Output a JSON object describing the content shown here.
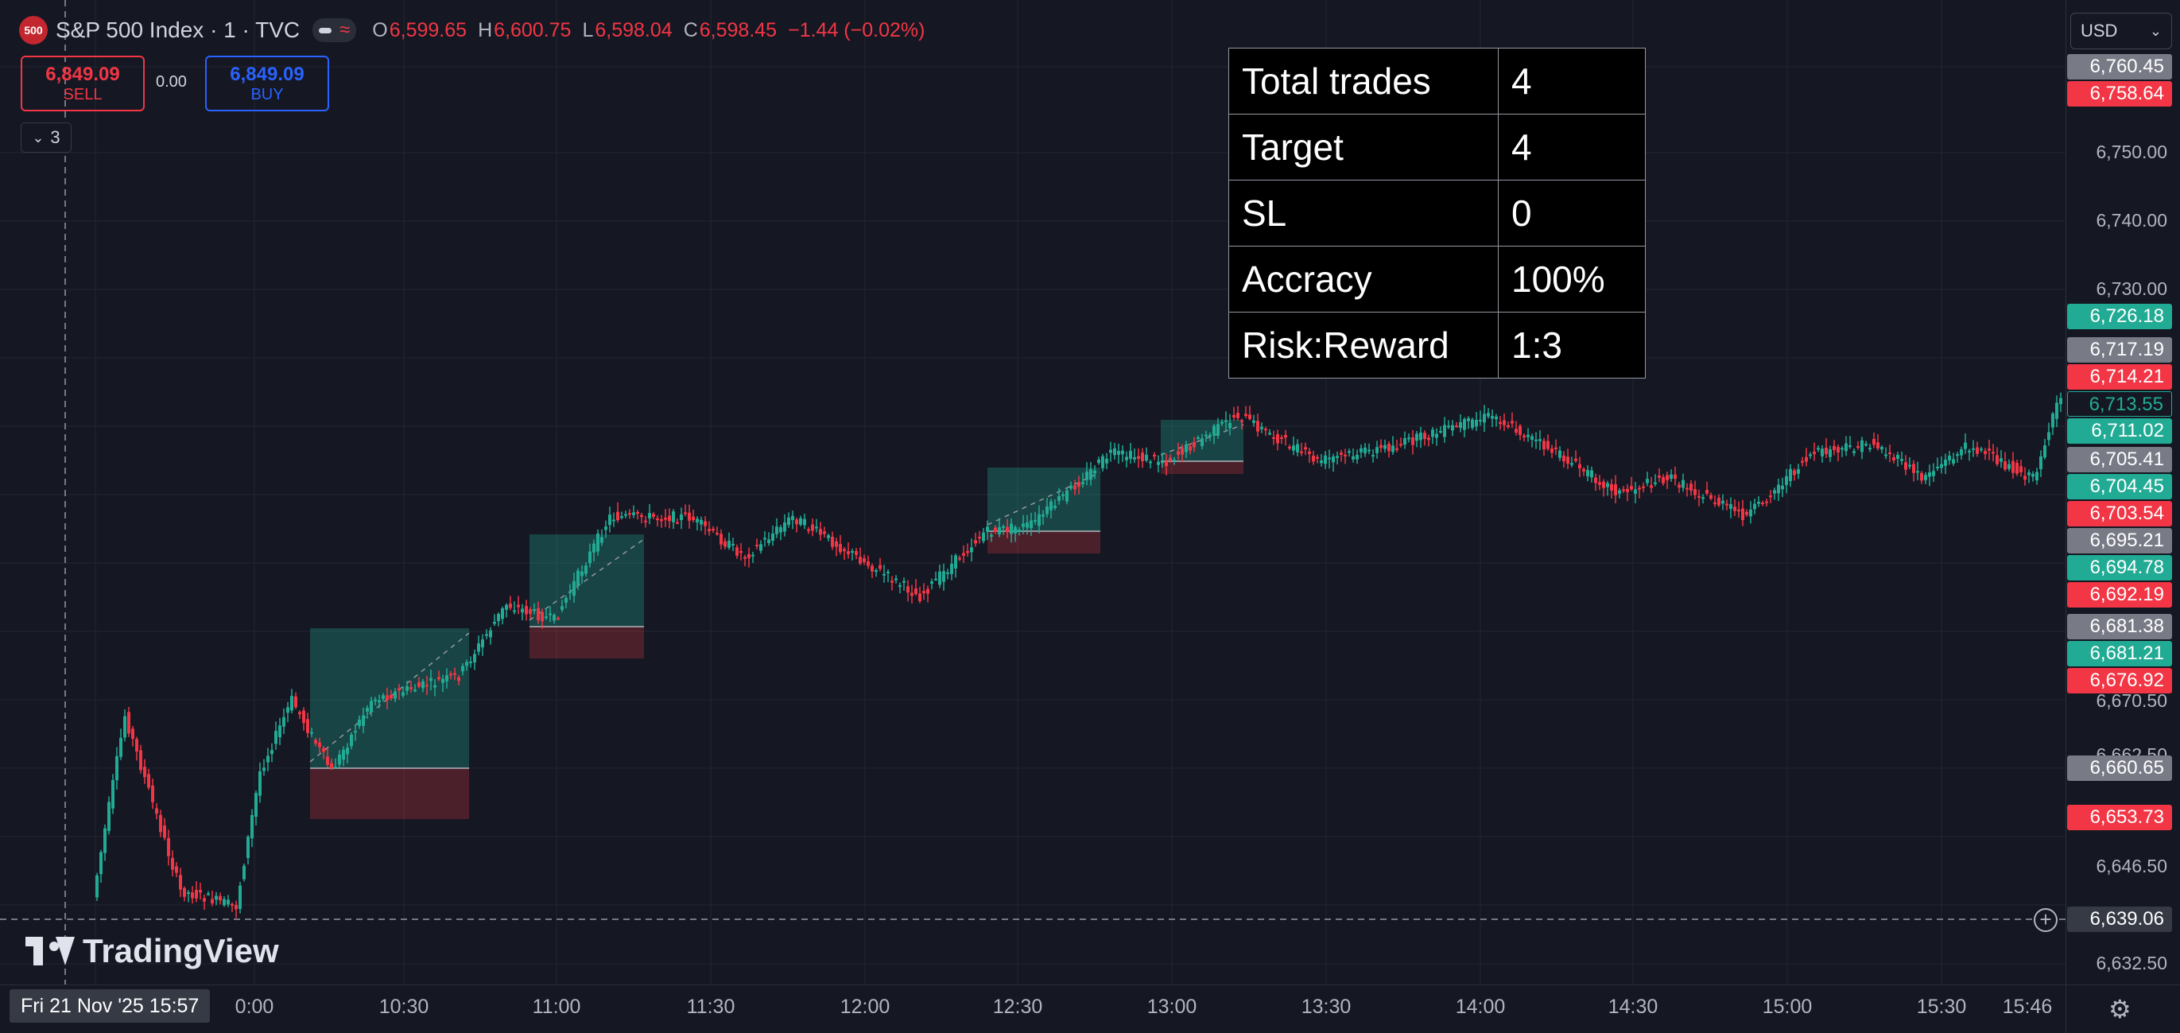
{
  "header": {
    "logo_text": "500",
    "title": "S&P 500 Index · 1 · TVC",
    "open_key": "O",
    "open": "6,599.65",
    "high_key": "H",
    "high": "6,600.75",
    "low_key": "L",
    "low": "6,598.04",
    "close_key": "C",
    "close": "6,598.45",
    "change": "−1.44 (−0.02%)"
  },
  "trade_panel": {
    "sell_price": "6,849.09",
    "sell_label": "SELL",
    "spread": "0.00",
    "buy_price": "6,849.09",
    "buy_label": "BUY",
    "collapse_count": "3"
  },
  "stats_table": [
    {
      "key": "Total trades",
      "value": "4"
    },
    {
      "key": "Target",
      "value": "4"
    },
    {
      "key": "SL",
      "value": "0"
    },
    {
      "key": "Accracy",
      "value": "100%"
    },
    {
      "key": "Risk:Reward",
      "value": "1:3"
    }
  ],
  "currency": "USD",
  "price_axis": [
    {
      "label": "6,760.45",
      "style": "gray"
    },
    {
      "label": "6,758.64",
      "style": "red"
    },
    {
      "label": "6,750.00",
      "style": "plain"
    },
    {
      "label": "6,740.00",
      "style": "plain"
    },
    {
      "label": "6,730.00",
      "style": "plain"
    },
    {
      "label": "6,726.18",
      "style": "green"
    },
    {
      "label": "6,717.19",
      "style": "gray"
    },
    {
      "label": "6,714.21",
      "style": "red"
    },
    {
      "label": "6,713.55",
      "style": "cur"
    },
    {
      "label": "6,711.02",
      "style": "green"
    },
    {
      "label": "6,705.41",
      "style": "gray"
    },
    {
      "label": "6,704.45",
      "style": "green"
    },
    {
      "label": "6,703.54",
      "style": "red"
    },
    {
      "label": "6,695.21",
      "style": "gray"
    },
    {
      "label": "6,694.78",
      "style": "green"
    },
    {
      "label": "6,692.19",
      "style": "red"
    },
    {
      "label": "6,681.38",
      "style": "gray"
    },
    {
      "label": "6,681.21",
      "style": "green"
    },
    {
      "label": "6,676.92",
      "style": "red"
    },
    {
      "label": "6,670.50",
      "style": "plain"
    },
    {
      "label": "6,662.50",
      "style": "plain"
    },
    {
      "label": "6,660.65",
      "style": "gray"
    },
    {
      "label": "6,653.73",
      "style": "red"
    },
    {
      "label": "6,646.50",
      "style": "plain"
    },
    {
      "label": "6,639.06",
      "style": "cross"
    },
    {
      "label": "6,632.50",
      "style": "plain"
    }
  ],
  "time_axis": [
    "0:00",
    "10:30",
    "11:00",
    "11:30",
    "12:00",
    "12:30",
    "13:00",
    "13:30",
    "14:00",
    "14:30",
    "15:00",
    "15:30",
    "15:46"
  ],
  "crosshair_time": "Fri 21 Nov '25   15:57",
  "watermark": "TradingView",
  "icons": {
    "settings": "gear-icon",
    "crosshair": "plus-circle-icon",
    "collapse": "chevron-down-icon"
  },
  "colors": {
    "up": "#22ab94",
    "down": "#f23645",
    "background": "#151823",
    "grid": "#232632"
  }
}
